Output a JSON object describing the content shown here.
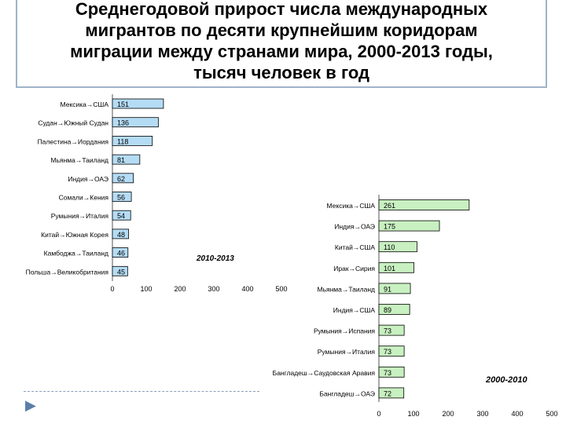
{
  "title": {
    "lines": [
      "Среднегодовой прирост числа международных",
      "мигрантов по десяти крупнейшим коридорам",
      "миграции между странами мира, 2000-2013 годы,",
      "тысяч человек в год"
    ]
  },
  "colors": {
    "left_bar": "#b5dcf5",
    "right_bar": "#c8f0c0",
    "bar_stroke": "#000000"
  },
  "chart_data": [
    {
      "type": "bar",
      "orientation": "horizontal",
      "title": "2010-2013",
      "categories": [
        "Мексика→США",
        "Судан→Южный Судан",
        "Палестина→Иордания",
        "Мьянма→Таиланд",
        "Индия→ОАЭ",
        "Сомали→Кения",
        "Румыния→Италия",
        "Китай→Южная Корея",
        "Камбоджа→Таиланд",
        "Польша→Великобритания"
      ],
      "values": [
        151,
        136,
        118,
        81,
        62,
        56,
        54,
        48,
        46,
        45
      ],
      "xticks": [
        0,
        100,
        200,
        300,
        400,
        500
      ],
      "xlim": [
        0,
        500
      ],
      "grid": false
    },
    {
      "type": "bar",
      "orientation": "horizontal",
      "title": "2000-2010",
      "categories": [
        "Мексика→США",
        "Индия→ОАЭ",
        "Китай→США",
        "Ирак→Сирия",
        "Мьянма→Таиланд",
        "Индия→США",
        "Румыния→Испания",
        "Румыния→Италия",
        "Бангладеш→Саудовская Аравия",
        "Бангладеш→ОАЭ"
      ],
      "values": [
        261,
        175,
        110,
        101,
        91,
        89,
        73,
        73,
        73,
        72
      ],
      "xticks": [
        0,
        100,
        200,
        300,
        400,
        500
      ],
      "xlim": [
        0,
        500
      ],
      "grid": false
    }
  ]
}
